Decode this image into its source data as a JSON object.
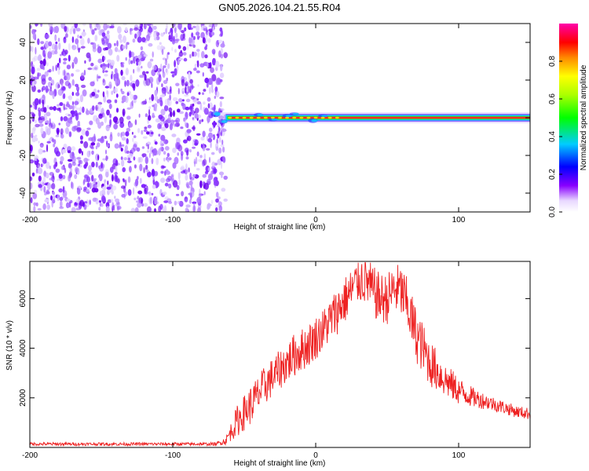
{
  "title": "GN05.2026.104.21.55.R04",
  "chart_data": [
    {
      "type": "heatmap",
      "title": "GN05.2026.104.21.55.R04",
      "xlabel": "Height of straight line (km)",
      "ylabel": "Frequency (Hz)",
      "xlim": [
        -200,
        150
      ],
      "ylim": [
        -50,
        50
      ],
      "xticks": [
        -200,
        -100,
        0,
        100
      ],
      "yticks": [
        -40,
        -20,
        0,
        20,
        40
      ],
      "xtick_labels": [
        "-200",
        "-100",
        "0",
        "100"
      ],
      "ytick_labels": [
        "-40",
        "-20",
        "0",
        "20",
        "40"
      ],
      "noise_region_x": [
        -200,
        -63
      ],
      "signal_line_freq_hz": 0,
      "colorbar": {
        "label": "Normalized spectral amplitude",
        "range": [
          0,
          1
        ],
        "ticks": [
          0.0,
          0.2,
          0.4,
          0.6,
          0.8
        ],
        "tick_labels": [
          "0.0",
          "0.2",
          "0.4",
          "0.6",
          "0.8"
        ],
        "colors": [
          "#ffffff",
          "#8800ff",
          "#0000ff",
          "#00ccff",
          "#00ff00",
          "#ffff00",
          "#ff8800",
          "#ff0000",
          "#ff00aa"
        ]
      }
    },
    {
      "type": "line",
      "xlabel": "Height of straight line (km)",
      "ylabel": "SNR (10 * v/v)",
      "xlim": [
        -200,
        150
      ],
      "ylim": [
        0,
        7500
      ],
      "xticks": [
        -200,
        -100,
        0,
        100
      ],
      "yticks": [
        2000,
        4000,
        6000
      ],
      "xtick_labels": [
        "-200",
        "-100",
        "0",
        "100"
      ],
      "ytick_labels": [
        "2000",
        "4000",
        "6000"
      ],
      "series": [
        {
          "name": "SNR",
          "color": "#ee2222",
          "envelope_x": [
            -200,
            -150,
            -100,
            -70,
            -63,
            -55,
            -45,
            -35,
            -25,
            -15,
            -5,
            5,
            15,
            25,
            30,
            35,
            40,
            45,
            50,
            55,
            60,
            65,
            70,
            80,
            90,
            100,
            110,
            120,
            130,
            140,
            150
          ],
          "envelope_y": [
            150,
            150,
            150,
            150,
            300,
            1200,
            1900,
            2700,
            3300,
            3900,
            4300,
            4900,
            5700,
            6500,
            6950,
            7000,
            6500,
            6200,
            6200,
            6600,
            6500,
            5800,
            4800,
            3600,
            2900,
            2400,
            2100,
            1900,
            1700,
            1500,
            1400
          ],
          "noise_amplitude": [
            80,
            80,
            80,
            80,
            200,
            800,
            1000,
            1000,
            1000,
            1100,
            1100,
            1100,
            1200,
            1200,
            1200,
            1300,
            1300,
            1300,
            1300,
            1300,
            1400,
            1400,
            1400,
            1200,
            900,
            700,
            500,
            400,
            350,
            300,
            300
          ]
        }
      ]
    }
  ]
}
